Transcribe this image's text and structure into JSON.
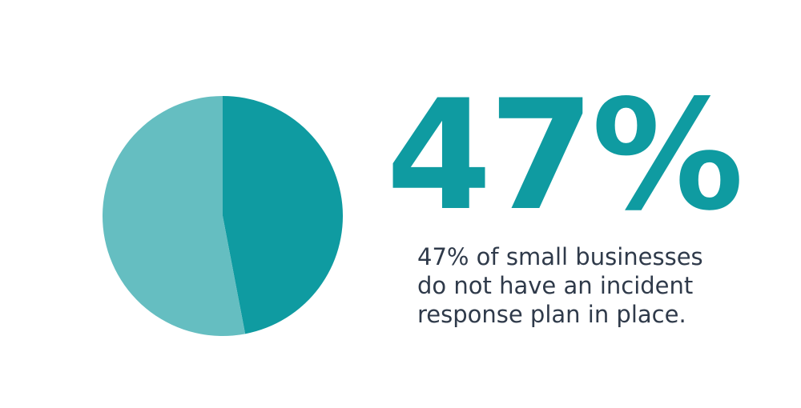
{
  "colors": {
    "accent": "#0f9ba1",
    "remainder": "#65bec1",
    "text": "#2f3a4a"
  },
  "headline": {
    "value_text": "47%"
  },
  "description": {
    "lines": [
      "47% of small businesses",
      "do not have an incident",
      "response plan in place."
    ]
  },
  "chart_data": {
    "type": "pie",
    "categories": [
      "",
      ""
    ],
    "values": [
      47,
      53
    ],
    "title": "",
    "start_angle_deg": 0,
    "direction": "clockwise"
  }
}
